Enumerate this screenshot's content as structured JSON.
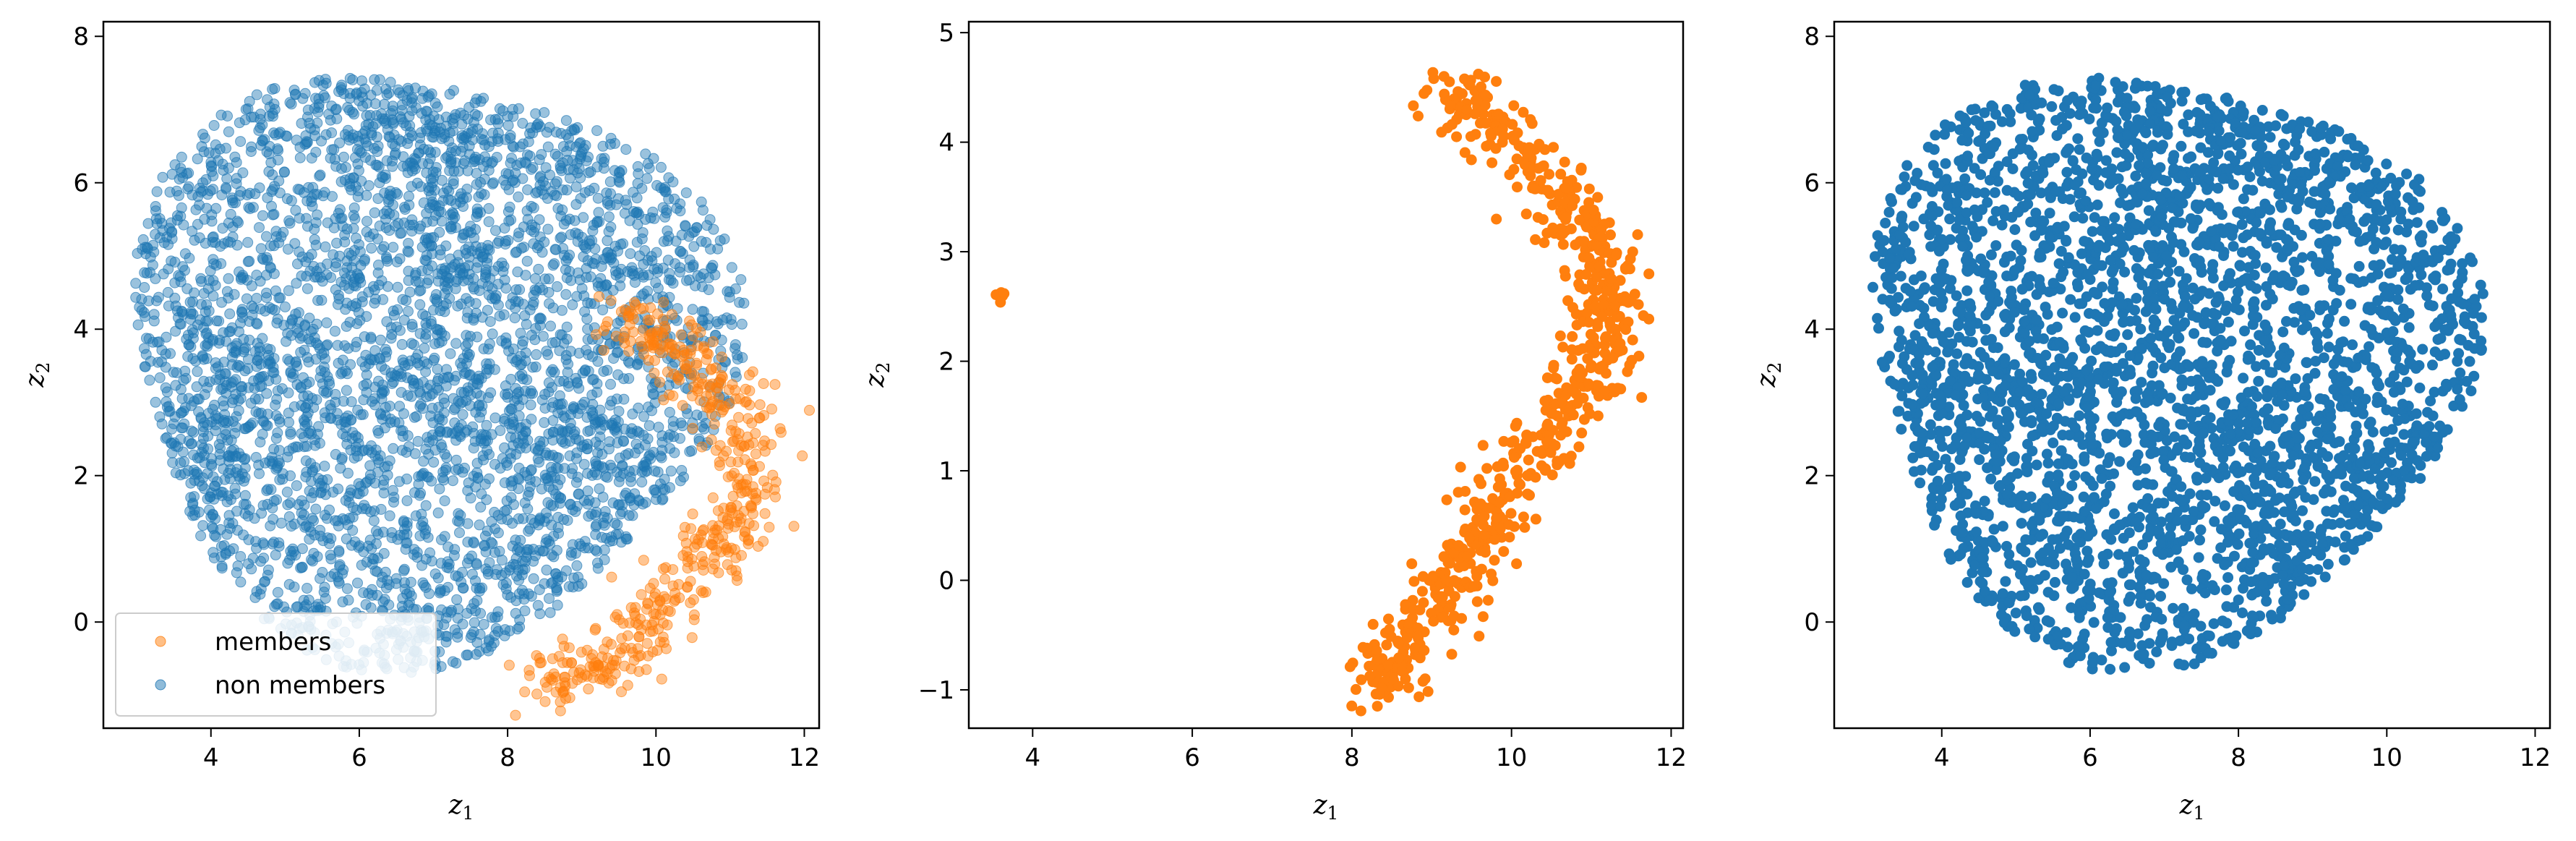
{
  "chart_data": [
    {
      "type": "scatter",
      "xlabel": "z",
      "xlabel_subscript": "1",
      "ylabel": "z",
      "ylabel_subscript": "2",
      "xlim": [
        2.55,
        12.2
      ],
      "ylim": [
        -1.45,
        8.2
      ],
      "xticks": [
        4,
        6,
        8,
        10,
        12
      ],
      "yticks": [
        0,
        2,
        4,
        6,
        8
      ],
      "legend": {
        "placement": "lower-left",
        "entries": [
          "members",
          "non members"
        ]
      },
      "series": [
        {
          "name": "non members",
          "color": "#1f77b4",
          "opacity": 0.45,
          "distribution": "dense blob",
          "center": [
            6.9,
            3.6
          ],
          "x_range": [
            2.9,
            11.7
          ],
          "y_range": [
            -1.0,
            7.7
          ],
          "approx_count": 6000
        },
        {
          "name": "members",
          "color": "#ff7f0e",
          "opacity": 0.45,
          "distribution": "arc along right edge",
          "arc_path": [
            [
              8.4,
              -0.9
            ],
            [
              9.2,
              -0.6
            ],
            [
              10.0,
              0.2
            ],
            [
              10.8,
              1.0
            ],
            [
              11.3,
              2.0
            ],
            [
              11.0,
              3.0
            ],
            [
              10.2,
              3.8
            ],
            [
              9.6,
              4.1
            ]
          ],
          "approx_count": 900
        }
      ]
    },
    {
      "type": "scatter",
      "xlabel": "z",
      "xlabel_subscript": "1",
      "ylabel": "z",
      "ylabel_subscript": "2",
      "xlim": [
        3.2,
        12.15
      ],
      "ylim": [
        -1.35,
        5.1
      ],
      "xticks": [
        4,
        6,
        8,
        10,
        12
      ],
      "yticks": [
        -1,
        0,
        1,
        2,
        3,
        4,
        5
      ],
      "series": [
        {
          "color": "#ff7f0e",
          "opacity": 1.0,
          "distribution": "crescent arc",
          "arc_path": [
            [
              8.2,
              -0.95
            ],
            [
              8.7,
              -0.6
            ],
            [
              9.3,
              0.0
            ],
            [
              9.8,
              0.6
            ],
            [
              10.3,
              1.2
            ],
            [
              10.9,
              1.8
            ],
            [
              11.3,
              2.4
            ],
            [
              11.1,
              3.0
            ],
            [
              10.5,
              3.6
            ],
            [
              9.8,
              4.1
            ],
            [
              9.2,
              4.5
            ]
          ],
          "outlier_cluster": {
            "center": [
              3.6,
              2.6
            ],
            "count": 6
          },
          "approx_count": 900
        }
      ]
    },
    {
      "type": "scatter",
      "xlabel": "z",
      "xlabel_subscript": "1",
      "ylabel": "z",
      "ylabel_subscript": "2",
      "xlim": [
        2.55,
        12.2
      ],
      "ylim": [
        -1.45,
        8.2
      ],
      "xticks": [
        4,
        6,
        8,
        10,
        12
      ],
      "yticks": [
        0,
        2,
        4,
        6,
        8
      ],
      "series": [
        {
          "color": "#1f77b4",
          "opacity": 1.0,
          "distribution": "dense blob",
          "center": [
            7.0,
            3.6
          ],
          "x_range": [
            2.9,
            11.7
          ],
          "y_range": [
            -1.0,
            7.7
          ],
          "approx_count": 6000
        }
      ]
    }
  ]
}
